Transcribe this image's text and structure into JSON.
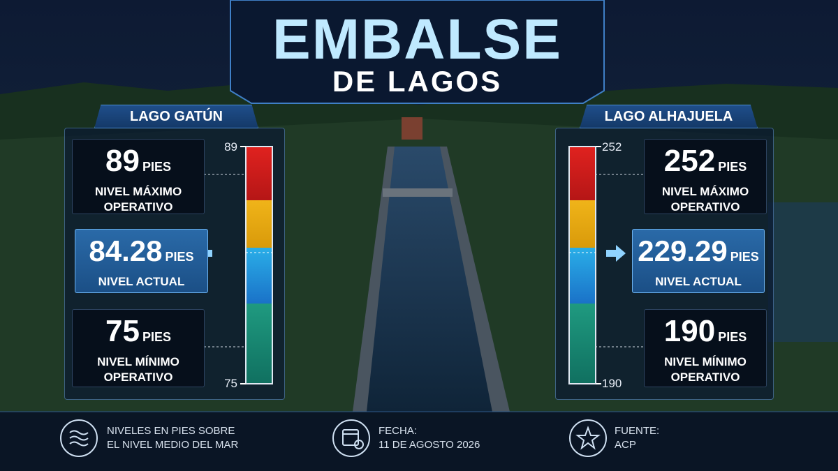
{
  "header": {
    "title": "EMBALSE",
    "subtitle": "DE LAGOS"
  },
  "lakes": [
    {
      "name": "LAGO GATÚN",
      "unit": "PIES",
      "max": {
        "value": 89,
        "label": [
          "NIVEL MÁXIMO",
          "OPERATIVO"
        ]
      },
      "current": {
        "value": 84.28,
        "label": [
          "NIVEL ACTUAL"
        ]
      },
      "min": {
        "value": 75,
        "label": [
          "NIVEL MÍNIMO",
          "OPERATIVO"
        ]
      }
    },
    {
      "name": "LAGO ALHAJUELA",
      "unit": "PIES",
      "max": {
        "value": 252,
        "label": [
          "NIVEL MÁXIMO",
          "OPERATIVO"
        ]
      },
      "current": {
        "value": 229.29,
        "label": [
          "NIVEL ACTUAL"
        ]
      },
      "min": {
        "value": 190,
        "label": [
          "NIVEL MÍNIMO",
          "OPERATIVO"
        ]
      }
    }
  ],
  "footer": [
    {
      "text": [
        "NIVELES EN PIES SOBRE",
        "EL NIVEL MEDIO DEL MAR"
      ]
    },
    {
      "text": [
        "FECHA:",
        "11 DE AGOSTO 2026"
      ]
    },
    {
      "text": [
        "FUENTE:",
        "ACP"
      ]
    }
  ]
}
